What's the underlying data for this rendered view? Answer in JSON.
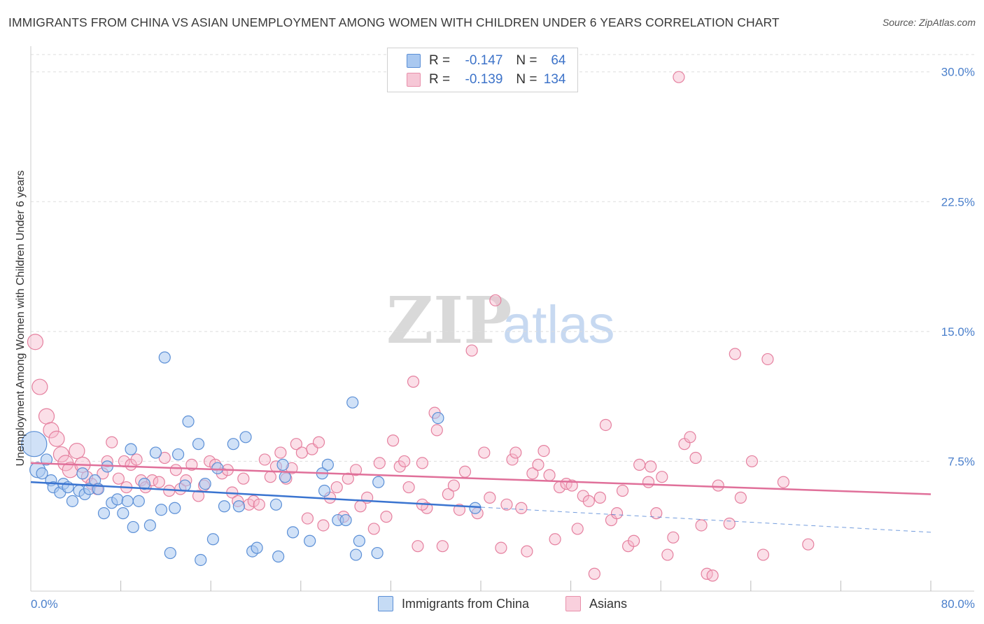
{
  "header": {
    "title": "IMMIGRANTS FROM CHINA VS ASIAN UNEMPLOYMENT AMONG WOMEN WITH CHILDREN UNDER 6 YEARS CORRELATION CHART",
    "source": "Source: ZipAtlas.com"
  },
  "legend": {
    "r_label": "R =",
    "n_label": "N =",
    "rows": [
      {
        "r": "-0.147",
        "n": "64"
      },
      {
        "r": "-0.139",
        "n": "134"
      }
    ]
  },
  "watermark": {
    "zip": "ZIP",
    "atlas": "atlas"
  },
  "colors": {
    "china_fill": "#a9c8f0",
    "china_stroke": "#5b8fd6",
    "china_line": "#3a74d0",
    "asian_fill": "#f6b8cc",
    "asian_stroke": "#e5809f",
    "asian_line": "#e0709a",
    "tick_text": "#4a7fcb",
    "grid": "#dddddd"
  },
  "chart_data": {
    "type": "scatter",
    "title": "IMMIGRANTS FROM CHINA VS ASIAN UNEMPLOYMENT AMONG WOMEN WITH CHILDREN UNDER 6 YEARS CORRELATION CHART",
    "xlabel": "",
    "ylabel": "Unemployment Among Women with Children Under 6 years",
    "xlim": [
      0,
      80
    ],
    "ylim": [
      0,
      31
    ],
    "x_ticks_labels": [
      "0.0%",
      "80.0%"
    ],
    "y_ticks": [
      7.5,
      15.0,
      22.5,
      30.0
    ],
    "y_ticks_labels": [
      "7.5%",
      "15.0%",
      "22.5%",
      "30.0%"
    ],
    "grid": "horizontal dashed",
    "legend_position": "bottom",
    "series": [
      {
        "name": "Immigrants from China",
        "r": -0.147,
        "n": 64,
        "trend": {
          "x0": 0,
          "y0": 6.3,
          "x1": 80,
          "y1": 3.4,
          "solid_until_x": 40
        },
        "points": [
          [
            0.3,
            8.5,
            3
          ],
          [
            0.6,
            7.0,
            2
          ],
          [
            1.0,
            6.8,
            1
          ],
          [
            1.4,
            7.6,
            1
          ],
          [
            1.8,
            6.4,
            1
          ],
          [
            2.0,
            6.0,
            1
          ],
          [
            2.6,
            5.7,
            1
          ],
          [
            2.9,
            6.2,
            1
          ],
          [
            3.3,
            6.0,
            1
          ],
          [
            3.7,
            5.2,
            1
          ],
          [
            4.3,
            5.8,
            1
          ],
          [
            4.6,
            6.8,
            1
          ],
          [
            4.8,
            5.6,
            1
          ],
          [
            5.2,
            5.9,
            1
          ],
          [
            5.7,
            6.4,
            1
          ],
          [
            6.0,
            5.9,
            1
          ],
          [
            6.5,
            4.5,
            1
          ],
          [
            6.8,
            7.2,
            1
          ],
          [
            7.2,
            5.1,
            1
          ],
          [
            7.7,
            5.3,
            1
          ],
          [
            8.2,
            4.5,
            1
          ],
          [
            8.6,
            5.2,
            1
          ],
          [
            8.9,
            8.2,
            1
          ],
          [
            9.1,
            3.7,
            1
          ],
          [
            9.6,
            5.2,
            1
          ],
          [
            10.1,
            6.2,
            1
          ],
          [
            10.6,
            3.8,
            1
          ],
          [
            11.1,
            8.0,
            1
          ],
          [
            11.6,
            4.7,
            1
          ],
          [
            11.9,
            13.5,
            1
          ],
          [
            12.4,
            2.2,
            1
          ],
          [
            12.8,
            4.8,
            1
          ],
          [
            13.1,
            7.9,
            1
          ],
          [
            13.7,
            6.1,
            1
          ],
          [
            14.0,
            9.8,
            1
          ],
          [
            14.9,
            8.5,
            1
          ],
          [
            15.1,
            1.8,
            1
          ],
          [
            15.5,
            6.2,
            1
          ],
          [
            16.2,
            3.0,
            1
          ],
          [
            16.6,
            7.1,
            1
          ],
          [
            17.2,
            4.9,
            1
          ],
          [
            18.0,
            8.5,
            1
          ],
          [
            18.5,
            4.9,
            1
          ],
          [
            19.1,
            8.9,
            1
          ],
          [
            19.7,
            2.3,
            1
          ],
          [
            20.1,
            2.5,
            1
          ],
          [
            21.8,
            5.0,
            1
          ],
          [
            22.0,
            2.0,
            1
          ],
          [
            22.4,
            7.3,
            1
          ],
          [
            22.6,
            6.6,
            1
          ],
          [
            23.3,
            3.4,
            1
          ],
          [
            24.8,
            2.9,
            1
          ],
          [
            25.9,
            6.8,
            1
          ],
          [
            26.1,
            5.8,
            1
          ],
          [
            26.4,
            7.3,
            1
          ],
          [
            27.3,
            4.1,
            1
          ],
          [
            28.0,
            4.1,
            1
          ],
          [
            28.6,
            10.9,
            1
          ],
          [
            28.9,
            2.1,
            1
          ],
          [
            29.2,
            2.9,
            1
          ],
          [
            30.8,
            2.2,
            1
          ],
          [
            30.9,
            6.3,
            1
          ],
          [
            36.2,
            10.0,
            1
          ],
          [
            39.5,
            4.8,
            1
          ]
        ]
      },
      {
        "name": "Asians",
        "r": -0.139,
        "n": 134,
        "trend": {
          "x0": 0,
          "y0": 7.4,
          "x1": 80,
          "y1": 5.6
        },
        "points": [
          [
            0.4,
            14.4,
            2
          ],
          [
            0.8,
            11.8,
            2
          ],
          [
            1.4,
            10.1,
            2
          ],
          [
            1.8,
            9.3,
            2
          ],
          [
            2.3,
            8.8,
            2
          ],
          [
            2.7,
            7.9,
            2
          ],
          [
            3.1,
            7.4,
            2
          ],
          [
            3.5,
            7.0,
            2
          ],
          [
            4.1,
            8.1,
            2
          ],
          [
            4.6,
            7.3,
            2
          ],
          [
            5.0,
            6.6,
            1
          ],
          [
            5.4,
            6.2,
            1
          ],
          [
            5.9,
            5.9,
            1
          ],
          [
            6.4,
            6.8,
            1
          ],
          [
            6.8,
            7.5,
            1
          ],
          [
            7.2,
            8.6,
            1
          ],
          [
            7.8,
            6.5,
            1
          ],
          [
            8.3,
            7.5,
            1
          ],
          [
            8.5,
            6.0,
            1
          ],
          [
            8.9,
            7.3,
            1
          ],
          [
            9.4,
            7.6,
            1
          ],
          [
            9.8,
            6.4,
            1
          ],
          [
            10.2,
            6.0,
            1
          ],
          [
            10.8,
            6.4,
            1
          ],
          [
            11.4,
            6.3,
            1
          ],
          [
            11.9,
            7.7,
            1
          ],
          [
            12.3,
            5.8,
            1
          ],
          [
            12.9,
            7.0,
            1
          ],
          [
            13.3,
            5.9,
            1
          ],
          [
            13.8,
            6.4,
            1
          ],
          [
            14.3,
            7.3,
            1
          ],
          [
            14.9,
            5.5,
            1
          ],
          [
            15.4,
            6.1,
            1
          ],
          [
            15.9,
            7.5,
            1
          ],
          [
            16.4,
            7.3,
            1
          ],
          [
            17.0,
            6.8,
            1
          ],
          [
            17.5,
            7.0,
            1
          ],
          [
            17.9,
            5.7,
            1
          ],
          [
            18.4,
            5.2,
            1
          ],
          [
            18.9,
            6.5,
            1
          ],
          [
            19.4,
            5.0,
            1
          ],
          [
            19.8,
            5.2,
            1
          ],
          [
            20.3,
            5.0,
            1
          ],
          [
            20.8,
            7.6,
            1
          ],
          [
            21.3,
            6.6,
            1
          ],
          [
            21.8,
            7.2,
            1
          ],
          [
            22.2,
            8.0,
            1
          ],
          [
            22.7,
            6.5,
            1
          ],
          [
            23.2,
            7.1,
            1
          ],
          [
            23.6,
            8.5,
            1
          ],
          [
            24.1,
            8.0,
            1
          ],
          [
            24.6,
            4.2,
            1
          ],
          [
            25.0,
            8.2,
            1
          ],
          [
            25.6,
            8.6,
            1
          ],
          [
            26.0,
            3.8,
            1
          ],
          [
            26.6,
            5.4,
            1
          ],
          [
            27.2,
            6.0,
            1
          ],
          [
            27.8,
            4.3,
            1
          ],
          [
            28.2,
            6.5,
            1
          ],
          [
            28.9,
            7.0,
            1
          ],
          [
            29.3,
            4.9,
            1
          ],
          [
            29.9,
            5.4,
            1
          ],
          [
            30.5,
            3.6,
            1
          ],
          [
            31.0,
            7.4,
            1
          ],
          [
            31.6,
            4.3,
            1
          ],
          [
            32.2,
            8.7,
            1
          ],
          [
            32.8,
            7.2,
            1
          ],
          [
            33.2,
            7.5,
            1
          ],
          [
            33.6,
            6.0,
            1
          ],
          [
            34.0,
            12.1,
            1
          ],
          [
            34.4,
            2.6,
            1
          ],
          [
            34.8,
            7.4,
            1
          ],
          [
            35.2,
            4.8,
            1
          ],
          [
            35.9,
            10.3,
            1
          ],
          [
            36.1,
            9.3,
            1
          ],
          [
            36.6,
            2.6,
            1
          ],
          [
            37.1,
            5.6,
            1
          ],
          [
            37.6,
            6.1,
            1
          ],
          [
            38.1,
            4.7,
            1
          ],
          [
            38.6,
            6.9,
            1
          ],
          [
            39.2,
            13.9,
            1
          ],
          [
            39.7,
            4.5,
            1
          ],
          [
            40.3,
            8.0,
            1
          ],
          [
            40.8,
            5.4,
            1
          ],
          [
            41.3,
            16.8,
            1
          ],
          [
            41.8,
            2.5,
            1
          ],
          [
            42.3,
            5.0,
            1
          ],
          [
            42.8,
            7.6,
            1
          ],
          [
            43.1,
            8.0,
            1
          ],
          [
            43.6,
            4.8,
            1
          ],
          [
            44.1,
            2.3,
            1
          ],
          [
            44.6,
            6.8,
            1
          ],
          [
            45.1,
            7.3,
            1
          ],
          [
            45.6,
            8.1,
            1
          ],
          [
            46.1,
            6.7,
            1
          ],
          [
            46.6,
            3.0,
            1
          ],
          [
            47.0,
            6.0,
            1
          ],
          [
            47.6,
            6.2,
            1
          ],
          [
            48.1,
            6.1,
            1
          ],
          [
            48.6,
            3.6,
            1
          ],
          [
            49.1,
            5.5,
            1
          ],
          [
            49.6,
            5.2,
            1
          ],
          [
            50.1,
            1.0,
            1
          ],
          [
            50.6,
            5.4,
            1
          ],
          [
            51.1,
            9.6,
            1
          ],
          [
            51.6,
            4.1,
            1
          ],
          [
            52.1,
            4.5,
            1
          ],
          [
            52.6,
            5.8,
            1
          ],
          [
            53.1,
            2.6,
            1
          ],
          [
            53.6,
            2.9,
            1
          ],
          [
            54.1,
            7.3,
            1
          ],
          [
            55.1,
            7.2,
            1
          ],
          [
            55.6,
            4.5,
            1
          ],
          [
            56.1,
            6.6,
            1
          ],
          [
            56.6,
            2.1,
            1
          ],
          [
            57.1,
            3.1,
            1
          ],
          [
            58.1,
            8.5,
            1
          ],
          [
            58.6,
            8.9,
            1
          ],
          [
            59.1,
            7.7,
            1
          ],
          [
            59.6,
            3.8,
            1
          ],
          [
            60.1,
            1.0,
            1
          ],
          [
            60.6,
            0.9,
            1
          ],
          [
            61.1,
            6.1,
            1
          ],
          [
            62.1,
            3.9,
            1
          ],
          [
            62.6,
            13.7,
            1
          ],
          [
            63.1,
            5.4,
            1
          ],
          [
            64.1,
            7.5,
            1
          ],
          [
            65.1,
            2.1,
            1
          ],
          [
            65.5,
            13.4,
            1
          ],
          [
            66.9,
            6.3,
            1
          ],
          [
            69.1,
            2.7,
            1
          ],
          [
            54.9,
            6.3,
            1
          ],
          [
            34.8,
            5.0,
            1
          ],
          [
            57.6,
            29.7,
            1
          ]
        ]
      }
    ]
  },
  "bottom_legend": [
    {
      "label": "Immigrants from China"
    },
    {
      "label": "Asians"
    }
  ]
}
